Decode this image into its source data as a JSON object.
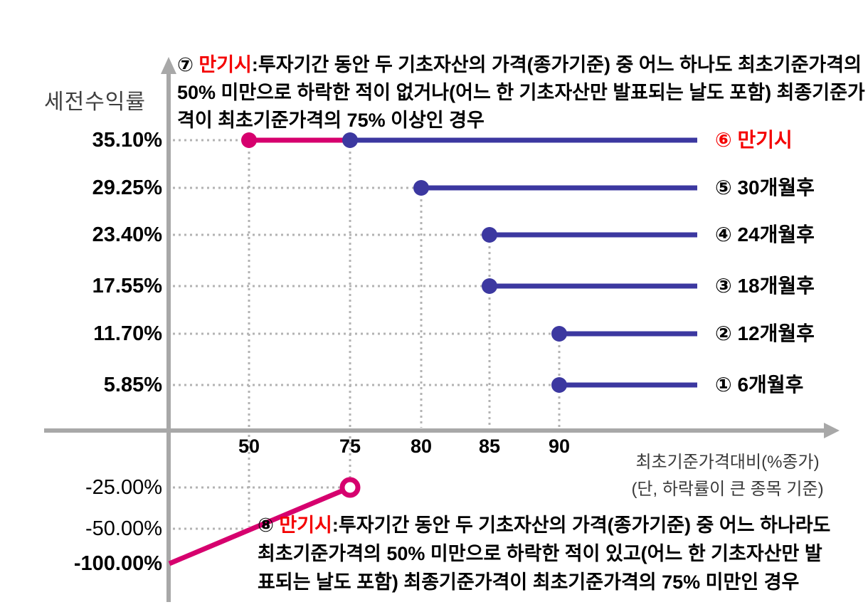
{
  "colors": {
    "magenta": "#d6006e",
    "blue": "#3c38a0",
    "red": "#f40000",
    "axis": "#a8a8a8",
    "grid": "#b3b3b3",
    "text": "#000000"
  },
  "chart_data": {
    "type": "line",
    "title": "",
    "y_axis_title": "세전수익률",
    "x_axis_caption_line1": "최초기준가격대비(%종가)",
    "x_axis_caption_line2": "(단, 하락률이 큰 종목 기준)",
    "x_ticks": [
      "50",
      "75",
      "80",
      "85",
      "90"
    ],
    "x_ticks_values": [
      50,
      75,
      80,
      85,
      90
    ],
    "y_ticks": [
      {
        "label": "35.10%",
        "value": 35.1,
        "bold": true
      },
      {
        "label": "29.25%",
        "value": 29.25,
        "bold": true
      },
      {
        "label": "23.40%",
        "value": 23.4,
        "bold": true
      },
      {
        "label": "17.55%",
        "value": 17.55,
        "bold": true
      },
      {
        "label": "11.70%",
        "value": 11.7,
        "bold": true
      },
      {
        "label": "5.85%",
        "value": 5.85,
        "bold": true
      },
      {
        "label": "-25.00%",
        "value": -25.0,
        "bold": false
      },
      {
        "label": "-50.00%",
        "value": -50.0,
        "bold": false
      },
      {
        "label": "-100.00%",
        "value": -100.0,
        "bold": true
      }
    ],
    "series": [
      {
        "num": "⑥",
        "label": "만기시",
        "rate": "35.10%",
        "rate_value": 35.1,
        "red": true,
        "segments": [
          {
            "from": "50",
            "to": "75",
            "color": "magenta",
            "dot": "magenta"
          },
          {
            "from": "75",
            "to": "end",
            "color": "blue",
            "dot": "blue"
          }
        ]
      },
      {
        "num": "⑤",
        "label": "30개월후",
        "rate": "29.25%",
        "rate_value": 29.25,
        "segments": [
          {
            "from": "80",
            "to": "end",
            "color": "blue",
            "dot": "blue"
          }
        ]
      },
      {
        "num": "④",
        "label": "24개월후",
        "rate": "23.40%",
        "rate_value": 23.4,
        "segments": [
          {
            "from": "85",
            "to": "end",
            "color": "blue",
            "dot": "blue"
          }
        ]
      },
      {
        "num": "③",
        "label": "18개월후",
        "rate": "17.55%",
        "rate_value": 17.55,
        "segments": [
          {
            "from": "85",
            "to": "end",
            "color": "blue",
            "dot": "blue"
          }
        ]
      },
      {
        "num": "②",
        "label": "12개월후",
        "rate": "11.70%",
        "rate_value": 11.7,
        "segments": [
          {
            "from": "90",
            "to": "end",
            "color": "blue",
            "dot": "blue"
          }
        ]
      },
      {
        "num": "①",
        "label": "6개월후",
        "rate": "5.85%",
        "rate_value": 5.85,
        "segments": [
          {
            "from": "90",
            "to": "end",
            "color": "blue",
            "dot": "blue"
          }
        ]
      }
    ],
    "loss_line": {
      "color": "magenta",
      "points": [
        {
          "x": 0,
          "ret": "-100.00%"
        },
        {
          "x": 75,
          "ret": "-25.00%"
        }
      ],
      "end_style": "open-circle"
    }
  },
  "annotations": {
    "top": {
      "marker": "⑦ ",
      "keyword": "만기시",
      "line1_rest": ":투자기간 동안 두 기초자산의 가격(종가기준) 중 어느 하나도 최초기준가격의",
      "line2": "50% 미만으로 하락한 적이 없거나(어느 한 기초자산만 발표되는 날도 포함) 최종기준가",
      "line3": "격이 최초기준가격의 75% 이상인 경우"
    },
    "bottom": {
      "marker": "⑧ ",
      "keyword": "만기시",
      "line1_rest": ":투자기간 동안 두 기초자산의 가격(종가기준) 중 어느 하나라도",
      "line2": "최초기준가격의 50% 미만으로 하락한 적이 있고(어느 한 기초자산만 발",
      "line3": "표되는 날도 포함) 최종기준가격이 최초기준가격의 75% 미만인 경우"
    }
  }
}
